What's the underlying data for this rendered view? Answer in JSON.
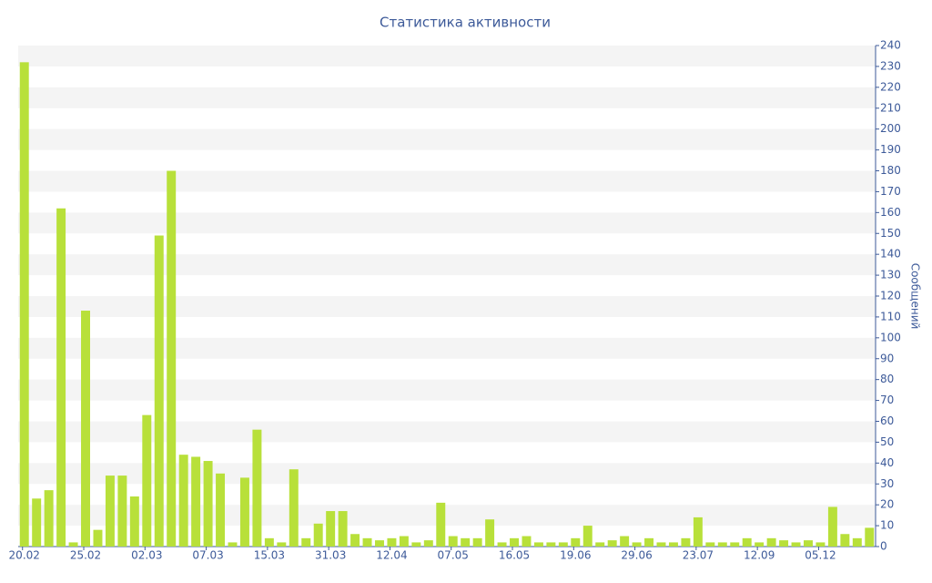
{
  "chart_data": {
    "type": "bar",
    "title": "Статистика активности",
    "y_label": "Сообщений",
    "color": "#b8e03a",
    "grid": "bands",
    "categories": [
      "20.02",
      null,
      null,
      null,
      null,
      "25.02",
      null,
      null,
      null,
      null,
      "02.03",
      null,
      null,
      null,
      null,
      "07.03",
      null,
      null,
      null,
      null,
      "15.03",
      null,
      null,
      null,
      null,
      "31.03",
      null,
      null,
      null,
      null,
      "12.04",
      null,
      null,
      null,
      null,
      "07.05",
      null,
      null,
      null,
      null,
      "16.05",
      null,
      null,
      null,
      null,
      "19.06",
      null,
      null,
      null,
      null,
      "29.06",
      null,
      null,
      null,
      null,
      "23.07",
      null,
      null,
      null,
      null,
      "12.09",
      null,
      null,
      null,
      null,
      "05.12",
      null,
      null,
      null,
      null
    ],
    "values": [
      232,
      23,
      27,
      162,
      2,
      113,
      8,
      34,
      34,
      24,
      63,
      149,
      180,
      44,
      43,
      41,
      35,
      2,
      33,
      56,
      4,
      2,
      37,
      4,
      11,
      17,
      17,
      6,
      4,
      3,
      4,
      5,
      2,
      3,
      21,
      5,
      4,
      4,
      13,
      2,
      4,
      5,
      2,
      2,
      2,
      4,
      10,
      2,
      3,
      5,
      2,
      4,
      2,
      2,
      4,
      14,
      2,
      2,
      2,
      4,
      2,
      4,
      3,
      2,
      3,
      2,
      19,
      6,
      4,
      9
    ],
    "ylim": [
      0,
      240
    ],
    "yticks": [
      0,
      10,
      20,
      30,
      40,
      50,
      60,
      70,
      80,
      90,
      100,
      110,
      120,
      130,
      140,
      150,
      160,
      170,
      180,
      190,
      200,
      210,
      220,
      230,
      240
    ]
  }
}
